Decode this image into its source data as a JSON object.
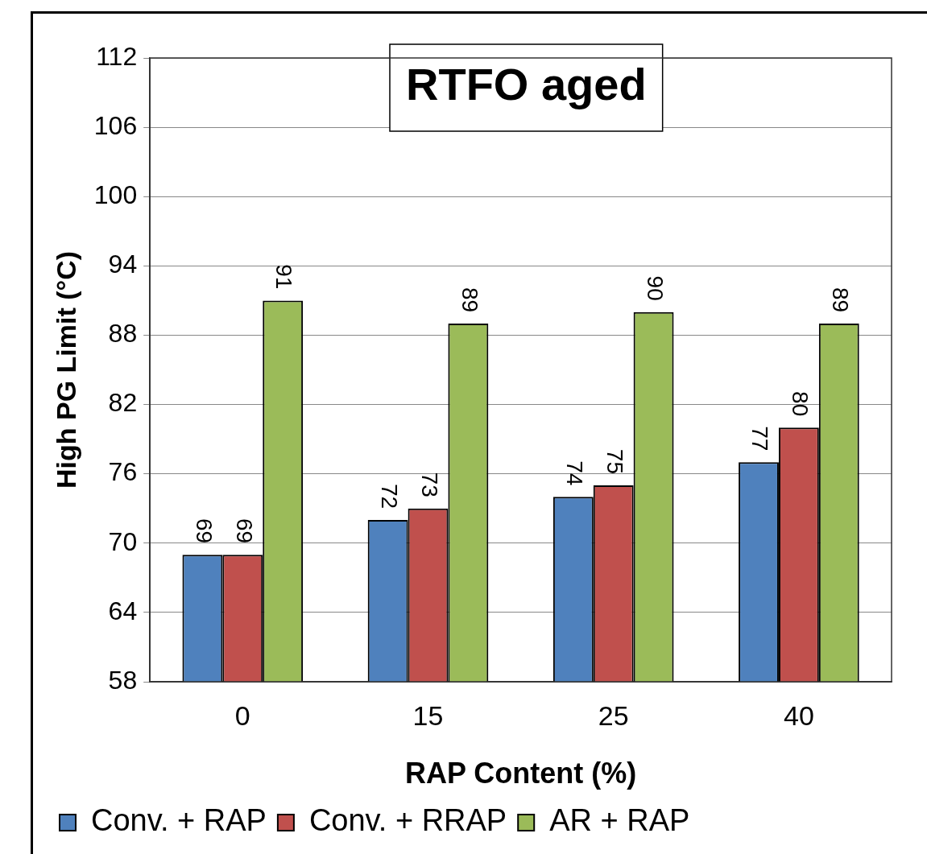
{
  "chart_data": {
    "type": "bar",
    "title": "RTFO aged",
    "xlabel": "RAP Content (%)",
    "ylabel": "High PG Limit (°C)",
    "categories": [
      "0",
      "15",
      "25",
      "40"
    ],
    "series": [
      {
        "name": "Conv. + RAP",
        "color": "#4f81bd",
        "values": [
          69,
          72,
          74,
          77
        ]
      },
      {
        "name": "Conv. + RRAP",
        "color": "#c0504d",
        "values": [
          69,
          73,
          75,
          80
        ]
      },
      {
        "name": "AR + RAP",
        "color": "#9bbb59",
        "values": [
          91,
          89,
          90,
          89
        ]
      }
    ],
    "ylim": [
      58,
      112
    ],
    "yticks": [
      58,
      64,
      70,
      76,
      82,
      88,
      94,
      100,
      106,
      112
    ],
    "grid": "y",
    "legend": "bottom",
    "data_labels": true
  }
}
